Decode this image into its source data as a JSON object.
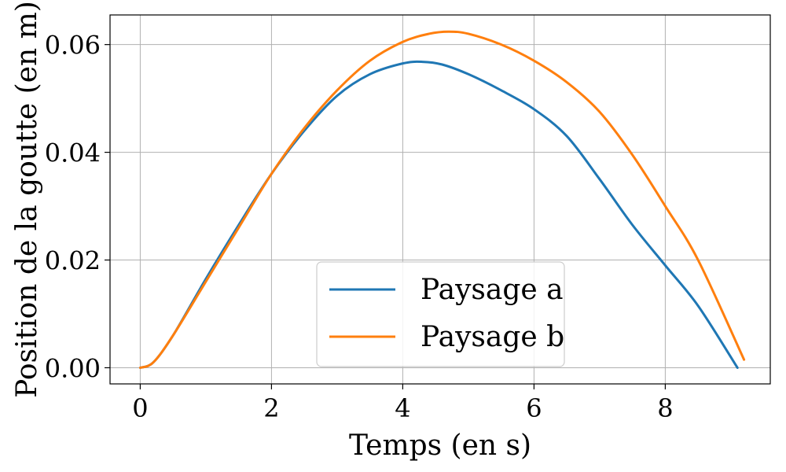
{
  "chart_data": {
    "type": "line",
    "xlabel": "Temps (en s)",
    "ylabel": "Position de la goutte (en m)",
    "xlim": [
      -0.46,
      9.6
    ],
    "ylim": [
      -0.003,
      0.0655
    ],
    "xticks": [
      0,
      2,
      4,
      6,
      8
    ],
    "xtick_labels": [
      "0",
      "2",
      "4",
      "6",
      "8"
    ],
    "yticks": [
      0.0,
      0.02,
      0.04,
      0.06
    ],
    "ytick_labels": [
      "0.00",
      "0.02",
      "0.04",
      "0.06"
    ],
    "grid": true,
    "legend_position": "lower-center",
    "series": [
      {
        "name": "Paysage a",
        "color": "#1f77b4",
        "x": [
          0,
          0.2,
          0.5,
          1.0,
          1.5,
          2.0,
          2.5,
          3.0,
          3.5,
          4.0,
          4.3,
          4.6,
          5.0,
          5.5,
          6.0,
          6.5,
          7.0,
          7.5,
          8.0,
          8.5,
          9.1
        ],
        "y": [
          0,
          0.001,
          0.006,
          0.0165,
          0.0265,
          0.036,
          0.044,
          0.0505,
          0.0545,
          0.0565,
          0.0568,
          0.0563,
          0.0545,
          0.0515,
          0.048,
          0.043,
          0.035,
          0.0265,
          0.019,
          0.0115,
          0.0
        ]
      },
      {
        "name": "Paysage b",
        "color": "#ff7f0e",
        "x": [
          0,
          0.2,
          0.5,
          1.0,
          1.5,
          2.0,
          2.5,
          3.0,
          3.5,
          4.0,
          4.4,
          4.7,
          5.0,
          5.5,
          6.0,
          6.5,
          7.0,
          7.5,
          8.0,
          8.5,
          9.2
        ],
        "y": [
          0,
          0.001,
          0.006,
          0.016,
          0.026,
          0.036,
          0.0445,
          0.0515,
          0.057,
          0.0605,
          0.062,
          0.0624,
          0.062,
          0.06,
          0.057,
          0.053,
          0.0475,
          0.0395,
          0.03,
          0.02,
          0.0015
        ]
      }
    ]
  }
}
